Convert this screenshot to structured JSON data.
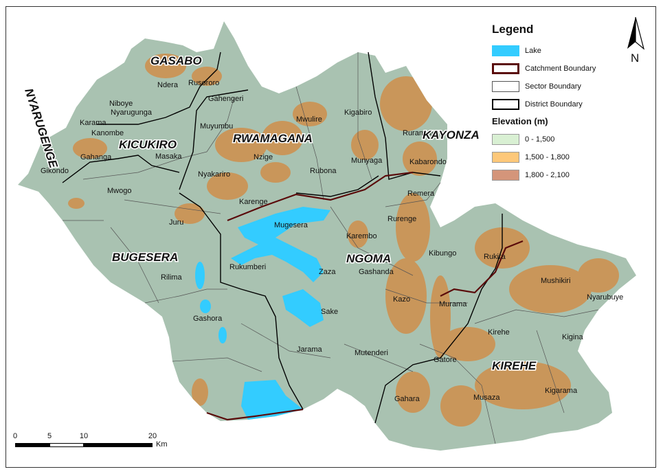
{
  "legend": {
    "title": "Legend",
    "items": [
      {
        "label": "Lake",
        "color": "#33ccff"
      },
      {
        "label": "Catchment Boundary",
        "color": "#5a0a0a"
      },
      {
        "label": "Sector Boundary",
        "color": "#555555"
      },
      {
        "label": "District Boundary",
        "color": "#000000"
      }
    ],
    "elevation_title": "Elevation (m)",
    "elevation": [
      {
        "label": "0 - 1,500",
        "color": "#d9f0d3"
      },
      {
        "label": "1,500 - 1,800",
        "color": "#fdc87a"
      },
      {
        "label": "1,800 - 2,100",
        "color": "#d4957a"
      }
    ]
  },
  "north_label": "N",
  "scale": {
    "ticks": [
      "0",
      "5",
      "10",
      "20"
    ],
    "unit": "Km"
  },
  "districts": [
    "GASABO",
    "KICUKIRO",
    "NYARUGENGE",
    "RWAMAGANA",
    "KAYONZA",
    "BUGESERA",
    "NGOMA",
    "KIREHE"
  ],
  "sectors": [
    "Ndera",
    "Rusororo",
    "Gahengeri",
    "Niboye",
    "Nyarugunga",
    "Karama",
    "Kanombe",
    "Gahanga",
    "Masaka",
    "Gikondo",
    "Muyumbu",
    "Mwulire",
    "Kigabiro",
    "Ruramira",
    "Nzige",
    "Munyaga",
    "Rubona",
    "Kabarondo",
    "Nyakariro",
    "Mwogo",
    "Karenge",
    "Remera",
    "Juru",
    "Mugesera",
    "Rurenge",
    "Karembo",
    "Kibungo",
    "Rukira",
    "Rukumberi",
    "Rilima",
    "Zaza",
    "Gashanda",
    "Mushikiri",
    "Nyarubuye",
    "Kazo",
    "Murama",
    "Gashora",
    "Sake",
    "Kirehe",
    "Kigina",
    "Jarama",
    "Mutenderi",
    "Gatore",
    "Gahara",
    "Musaza",
    "Kigarama"
  ],
  "colors": {
    "lowland": "#a9c2b1",
    "highland": "#c9965a",
    "lake": "#33ccff",
    "catchment": "#5a0a0a"
  }
}
